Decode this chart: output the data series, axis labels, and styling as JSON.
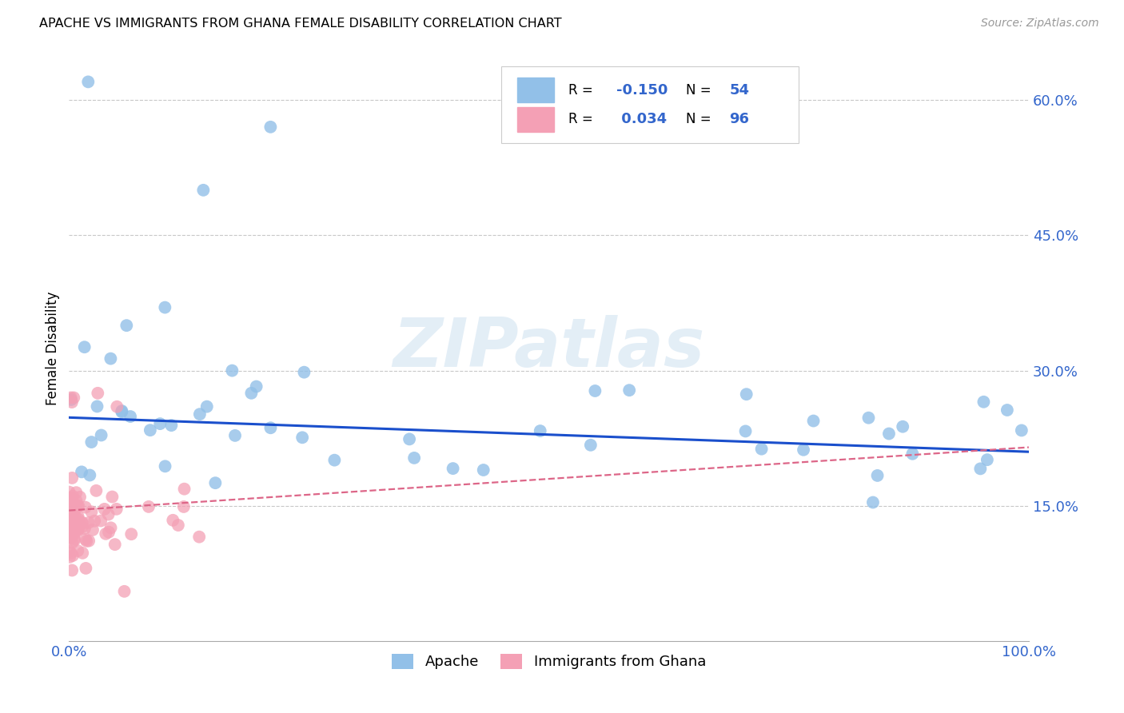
{
  "title": "APACHE VS IMMIGRANTS FROM GHANA FEMALE DISABILITY CORRELATION CHART",
  "source": "Source: ZipAtlas.com",
  "ylabel": "Female Disability",
  "ytick_labels": [
    "15.0%",
    "30.0%",
    "45.0%",
    "60.0%"
  ],
  "ytick_values": [
    0.15,
    0.3,
    0.45,
    0.6
  ],
  "xlim": [
    0.0,
    1.0
  ],
  "ylim": [
    0.0,
    0.65
  ],
  "apache_R": -0.15,
  "apache_N": 54,
  "ghana_R": 0.034,
  "ghana_N": 96,
  "apache_color": "#92c0e8",
  "ghana_color": "#f4a0b5",
  "apache_line_color": "#1a4fcc",
  "ghana_line_color": "#dd6688",
  "background_color": "#ffffff",
  "grid_color": "#c8c8c8",
  "legend_label_apache": "Apache",
  "legend_label_ghana": "Immigrants from Ghana",
  "apache_line_x": [
    0.0,
    1.0
  ],
  "apache_line_y": [
    0.248,
    0.21
  ],
  "ghana_line_x": [
    0.0,
    1.0
  ],
  "ghana_line_y": [
    0.145,
    0.215
  ]
}
